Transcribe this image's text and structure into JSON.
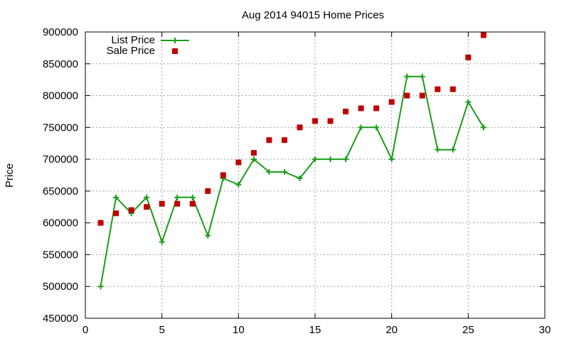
{
  "chart_data": {
    "type": "line",
    "title": "Aug 2014 94015 Home Prices",
    "xlabel": "",
    "ylabel": "Price",
    "xlim": [
      0,
      30
    ],
    "ylim": [
      450000,
      900000
    ],
    "x_ticks": [
      0,
      5,
      10,
      15,
      20,
      25,
      30
    ],
    "y_ticks": [
      450000,
      500000,
      550000,
      600000,
      650000,
      700000,
      750000,
      800000,
      850000,
      900000
    ],
    "grid": true,
    "legend_position": "top-left",
    "series": [
      {
        "name": "List Price",
        "style": "line-with-plus-markers",
        "color": "#1a9d1a",
        "x": [
          1,
          2,
          3,
          4,
          5,
          6,
          7,
          8,
          9,
          10,
          11,
          12,
          13,
          14,
          15,
          16,
          17,
          18,
          19,
          20,
          21,
          22,
          23,
          24,
          25,
          26
        ],
        "values": [
          500000,
          640000,
          615000,
          640000,
          570000,
          640000,
          640000,
          580000,
          670000,
          660000,
          700000,
          680000,
          680000,
          670000,
          700000,
          700000,
          700000,
          750000,
          750000,
          700000,
          830000,
          830000,
          715000,
          715000,
          790000,
          750000
        ]
      },
      {
        "name": "Sale Price",
        "style": "square-markers",
        "color": "#c00000",
        "x": [
          1,
          2,
          3,
          4,
          5,
          6,
          7,
          8,
          9,
          10,
          11,
          12,
          13,
          14,
          15,
          16,
          17,
          18,
          19,
          20,
          21,
          22,
          23,
          24,
          25,
          26
        ],
        "values": [
          600000,
          615000,
          620000,
          625000,
          630000,
          630000,
          630000,
          650000,
          675000,
          695000,
          710000,
          730000,
          730000,
          750000,
          760000,
          760000,
          775000,
          780000,
          780000,
          790000,
          800000,
          800000,
          810000,
          810000,
          860000,
          895000
        ]
      }
    ]
  }
}
